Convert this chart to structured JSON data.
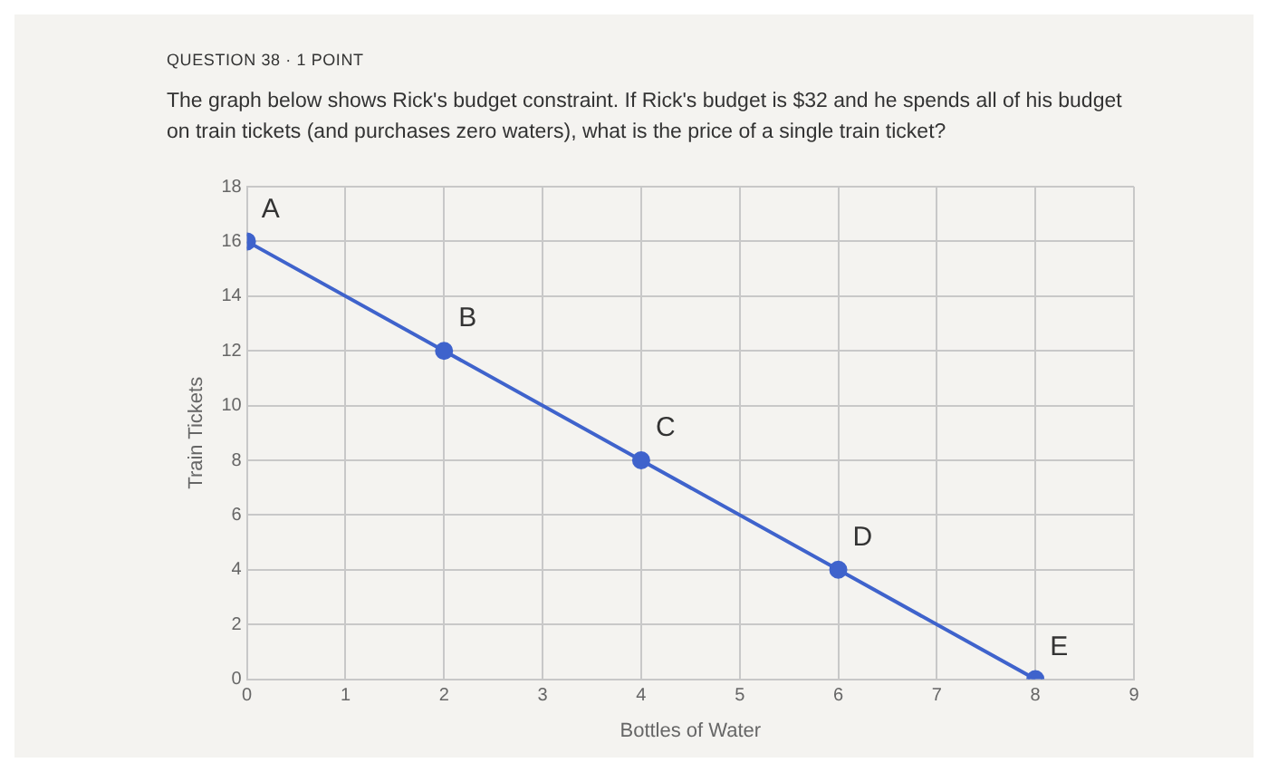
{
  "chart_data": {
    "type": "line",
    "title": "QUESTION 38 · 1 POINT",
    "subtitle": "The graph below shows Rick's budget constraint. If Rick's budget is $32 and he spends all of his budget on train tickets (and purchases zero waters), what is the price of a single train ticket?",
    "xlabel": "Bottles of Water",
    "ylabel": "Train Tickets",
    "x": [
      0,
      2,
      4,
      6,
      8
    ],
    "series": [
      {
        "color": "#3f63cc",
        "values": [
          16,
          12,
          8,
          4,
          0
        ]
      }
    ],
    "annotations": [
      {
        "text": "A",
        "x": 0,
        "y": 16
      },
      {
        "text": "B",
        "x": 2,
        "y": 12
      },
      {
        "text": "C",
        "x": 4,
        "y": 8
      },
      {
        "text": "D",
        "x": 6,
        "y": 4
      },
      {
        "text": "E",
        "x": 8,
        "y": 0
      }
    ],
    "xlim": [
      0,
      9
    ],
    "xticks": [
      0,
      1,
      2,
      3,
      4,
      5,
      6,
      7,
      8,
      9
    ],
    "ylim": [
      0,
      18
    ],
    "yticks": [
      0,
      2,
      4,
      6,
      8,
      10,
      12,
      14,
      16,
      18
    ],
    "grid": true,
    "legend": false,
    "marker": "circle",
    "line_style": "solid"
  }
}
